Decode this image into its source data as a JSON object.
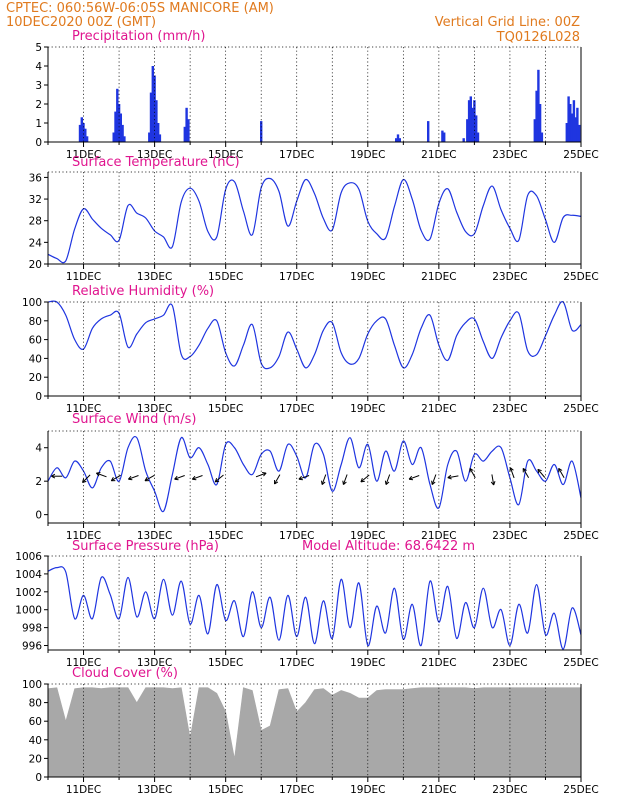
{
  "header": {
    "left_line1": "CPTEC:   060:56W-06:05S   MANICORE (AM)",
    "left_line2": "10DEC2020 00Z (GMT)",
    "right_line1": "Vertical Grid Line: 00Z",
    "right_line2": "TQ0126L028"
  },
  "colors": {
    "header": "#e07a1e",
    "title": "#e0158f",
    "series": "#1f35e0",
    "cloud": "#a8a8a8"
  },
  "x_tick_labels": [
    "11DEC",
    "13DEC",
    "15DEC",
    "17DEC",
    "19DEC",
    "21DEC",
    "23DEC",
    "25DEC"
  ],
  "chart_data": [
    {
      "type": "bar",
      "title": "Precipitation (mm/h)",
      "ylim": [
        0,
        5
      ],
      "yticks": [
        "0",
        "1",
        "2",
        "3",
        "4",
        "5"
      ],
      "x_unit": "days since 10DEC2020 00Z",
      "xlim": [
        0,
        15
      ],
      "grid": true,
      "x": [
        0.9,
        0.95,
        1.0,
        1.05,
        1.1,
        1.85,
        1.9,
        1.95,
        2.0,
        2.05,
        2.1,
        2.15,
        2.85,
        2.9,
        2.95,
        3.0,
        3.05,
        3.1,
        3.15,
        3.85,
        3.9,
        3.95,
        6.0,
        9.8,
        9.85,
        9.9,
        10.7,
        11.1,
        11.15,
        11.7,
        11.8,
        11.85,
        11.9,
        11.95,
        12.0,
        12.05,
        12.1,
        13.7,
        13.75,
        13.8,
        13.85,
        13.9,
        14.6,
        14.65,
        14.7,
        14.75,
        14.8,
        14.85,
        14.9,
        14.95
      ],
      "values": [
        0.9,
        1.3,
        1.0,
        0.7,
        0.3,
        0.5,
        1.6,
        2.8,
        2.0,
        1.5,
        0.9,
        0.3,
        0.5,
        2.6,
        4.0,
        3.5,
        2.2,
        1.0,
        0.4,
        0.8,
        1.8,
        1.2,
        1.1,
        0.2,
        0.4,
        0.2,
        1.1,
        0.6,
        0.5,
        0.2,
        1.2,
        2.2,
        2.4,
        1.8,
        2.2,
        1.4,
        0.5,
        1.2,
        2.7,
        3.8,
        2.0,
        0.5,
        1.0,
        2.4,
        2.0,
        1.5,
        2.2,
        1.3,
        1.8,
        0.9
      ]
    },
    {
      "type": "line",
      "title": "Surface Temperature (nC)",
      "ylim": [
        20,
        37
      ],
      "yticks": [
        "20",
        "24",
        "28",
        "32",
        "36"
      ],
      "x_unit": "days since 10DEC2020 00Z",
      "xlim": [
        0,
        15
      ],
      "grid": true,
      "x": [
        0,
        0.25,
        0.5,
        0.75,
        1.0,
        1.25,
        1.5,
        1.75,
        2.0,
        2.25,
        2.5,
        2.75,
        3.0,
        3.25,
        3.5,
        3.75,
        4.0,
        4.25,
        4.5,
        4.75,
        5.0,
        5.25,
        5.5,
        5.75,
        6.0,
        6.25,
        6.5,
        6.75,
        7.0,
        7.25,
        7.5,
        7.75,
        8.0,
        8.25,
        8.5,
        8.75,
        9.0,
        9.25,
        9.5,
        9.75,
        10.0,
        10.25,
        10.5,
        10.75,
        11.0,
        11.25,
        11.5,
        11.75,
        12.0,
        12.25,
        12.5,
        12.75,
        13.0,
        13.25,
        13.5,
        13.75,
        14.0,
        14.25,
        14.5,
        14.75,
        15.0
      ],
      "series": [
        {
          "values": [
            21.8,
            21.0,
            20.6,
            26.5,
            30.2,
            28.3,
            26.6,
            25.4,
            24.4,
            30.8,
            29.4,
            28.5,
            26.1,
            25.0,
            23.2,
            31.5,
            34.0,
            31.6,
            26.0,
            25.0,
            33.8,
            35.2,
            29.8,
            25.4,
            34.1,
            35.8,
            33.4,
            27.0,
            31.6,
            35.6,
            33.0,
            28.4,
            26.3,
            33.2,
            35.0,
            33.8,
            27.9,
            25.6,
            24.8,
            30.6,
            35.6,
            32.0,
            26.2,
            24.6,
            31.2,
            33.9,
            29.6,
            26.0,
            25.6,
            30.8,
            34.4,
            30.0,
            26.6,
            24.4,
            32.7,
            32.6,
            28.2,
            24.0,
            28.6,
            29.0,
            28.8
          ]
        }
      ]
    },
    {
      "type": "line",
      "title": "Relative Humidity (%)",
      "ylim": [
        0,
        100
      ],
      "yticks": [
        "0",
        "20",
        "40",
        "60",
        "80",
        "100"
      ],
      "x_unit": "days since 10DEC2020 00Z",
      "xlim": [
        0,
        15
      ],
      "grid": true,
      "x": [
        0,
        0.25,
        0.5,
        0.75,
        1.0,
        1.25,
        1.5,
        1.75,
        2.0,
        2.25,
        2.5,
        2.75,
        3.0,
        3.25,
        3.5,
        3.75,
        4.0,
        4.25,
        4.5,
        4.75,
        5.0,
        5.25,
        5.5,
        5.75,
        6.0,
        6.25,
        6.5,
        6.75,
        7.0,
        7.25,
        7.5,
        7.75,
        8.0,
        8.25,
        8.5,
        8.75,
        9.0,
        9.25,
        9.5,
        9.75,
        10.0,
        10.25,
        10.5,
        10.75,
        11.0,
        11.25,
        11.5,
        11.75,
        12.0,
        12.25,
        12.5,
        12.75,
        13.0,
        13.25,
        13.5,
        13.75,
        14.0,
        14.25,
        14.5,
        14.75,
        15.0
      ],
      "series": [
        {
          "values": [
            100,
            100,
            86,
            60,
            50,
            72,
            82,
            86,
            88,
            52,
            66,
            78,
            82,
            86,
            96,
            44,
            42,
            54,
            72,
            80,
            46,
            32,
            54,
            76,
            35,
            30,
            42,
            68,
            50,
            30,
            44,
            70,
            78,
            46,
            34,
            40,
            66,
            80,
            82,
            54,
            30,
            44,
            72,
            86,
            54,
            38,
            64,
            78,
            82,
            58,
            40,
            62,
            80,
            88,
            48,
            44,
            64,
            86,
            100,
            70,
            76
          ]
        }
      ]
    },
    {
      "type": "line",
      "title": "Surface Wind (m/s)",
      "ylim": [
        -0.5,
        5
      ],
      "yticks": [
        "0",
        "2",
        "4"
      ],
      "x_unit": "days since 10DEC2020 00Z",
      "xlim": [
        0,
        15
      ],
      "grid": true,
      "x": [
        0,
        0.25,
        0.5,
        0.75,
        1.0,
        1.25,
        1.5,
        1.75,
        2.0,
        2.25,
        2.5,
        2.75,
        3.0,
        3.25,
        3.5,
        3.75,
        4.0,
        4.25,
        4.5,
        4.75,
        5.0,
        5.25,
        5.5,
        5.75,
        6.0,
        6.25,
        6.5,
        6.75,
        7.0,
        7.25,
        7.5,
        7.75,
        8.0,
        8.25,
        8.5,
        8.75,
        9.0,
        9.25,
        9.5,
        9.75,
        10.0,
        10.25,
        10.5,
        10.75,
        11.0,
        11.25,
        11.5,
        11.75,
        12.0,
        12.25,
        12.5,
        12.75,
        13.0,
        13.25,
        13.5,
        13.75,
        14.0,
        14.25,
        14.5,
        14.75,
        15.0
      ],
      "series": [
        {
          "values": [
            2.0,
            2.8,
            2.2,
            3.2,
            2.6,
            1.6,
            2.8,
            3.2,
            2.0,
            4.0,
            4.6,
            2.6,
            1.4,
            0.2,
            2.4,
            4.6,
            3.4,
            4.0,
            3.0,
            1.8,
            4.2,
            4.0,
            3.0,
            2.4,
            3.6,
            3.8,
            2.6,
            4.2,
            3.5,
            2.2,
            4.2,
            3.6,
            1.4,
            3.0,
            4.6,
            2.8,
            4.2,
            2.0,
            3.8,
            2.6,
            4.4,
            3.0,
            4.0,
            1.8,
            0.4,
            3.0,
            3.8,
            2.0,
            3.6,
            3.2,
            3.8,
            4.0,
            2.2,
            0.6,
            3.2,
            2.6,
            2.0,
            3.0,
            1.8,
            3.2,
            1.0
          ]
        }
      ],
      "arrows": {
        "x": [
          0.35,
          1.15,
          1.6,
          2.0,
          2.5,
          2.95,
          3.8,
          4.3,
          4.9,
          5.9,
          6.5,
          7.3,
          7.8,
          8.4,
          9.0,
          9.6,
          10.4,
          10.9,
          11.5,
          12.0,
          12.5,
          13.1,
          13.5,
          13.95,
          14.5
        ],
        "dir_deg": [
          180,
          225,
          160,
          210,
          200,
          210,
          200,
          200,
          220,
          20,
          240,
          200,
          250,
          250,
          220,
          250,
          200,
          250,
          190,
          120,
          280,
          110,
          120,
          130,
          120
        ]
      }
    },
    {
      "type": "line",
      "title": "Surface Pressure (hPa)",
      "annotation": "Model Altitude: 68.6422 m",
      "ylim": [
        995.5,
        1006
      ],
      "yticks": [
        "996",
        "998",
        "1000",
        "1002",
        "1004",
        "1006"
      ],
      "x_unit": "days since 10DEC2020 00Z",
      "xlim": [
        0,
        15
      ],
      "grid": true,
      "x": [
        0,
        0.25,
        0.5,
        0.75,
        1.0,
        1.25,
        1.5,
        1.75,
        2.0,
        2.25,
        2.5,
        2.75,
        3.0,
        3.25,
        3.5,
        3.75,
        4.0,
        4.25,
        4.5,
        4.75,
        5.0,
        5.25,
        5.5,
        5.75,
        6.0,
        6.25,
        6.5,
        6.75,
        7.0,
        7.25,
        7.5,
        7.75,
        8.0,
        8.25,
        8.5,
        8.75,
        9.0,
        9.25,
        9.5,
        9.75,
        10.0,
        10.25,
        10.5,
        10.75,
        11.0,
        11.25,
        11.5,
        11.75,
        12.0,
        12.25,
        12.5,
        12.75,
        13.0,
        13.25,
        13.5,
        13.75,
        14.0,
        14.25,
        14.5,
        14.75,
        15.0
      ],
      "series": [
        {
          "values": [
            1004.3,
            1004.7,
            1004.2,
            999.0,
            1001.6,
            999.0,
            1003.6,
            1001.7,
            999.0,
            1003.6,
            999.2,
            1002.0,
            999.0,
            1003.4,
            999.4,
            1003.2,
            998.4,
            1001.6,
            997.3,
            1002.8,
            998.8,
            1001.0,
            997.0,
            1002.0,
            998.0,
            1001.4,
            996.6,
            1001.6,
            997.0,
            1001.4,
            996.2,
            1001.0,
            996.8,
            1003.4,
            998.0,
            1003.0,
            996.0,
            1000.4,
            997.4,
            1002.4,
            996.7,
            1000.6,
            996.0,
            1003.2,
            998.6,
            1002.6,
            996.8,
            1000.8,
            998.0,
            1002.4,
            998.0,
            1000.0,
            996.0,
            1000.6,
            997.4,
            1002.8,
            997.2,
            999.6,
            995.6,
            1000.2,
            997.2
          ]
        }
      ]
    },
    {
      "type": "area",
      "title": "Cloud Cover (%)",
      "ylim": [
        0,
        100
      ],
      "yticks": [
        "0",
        "20",
        "40",
        "60",
        "80",
        "100"
      ],
      "x_unit": "days since 10DEC2020 00Z",
      "xlim": [
        0,
        15
      ],
      "grid": true,
      "x": [
        0,
        0.25,
        0.5,
        0.75,
        1.0,
        1.25,
        1.5,
        1.75,
        2.0,
        2.25,
        2.5,
        2.75,
        3.0,
        3.25,
        3.5,
        3.75,
        4.0,
        4.25,
        4.5,
        4.75,
        5.0,
        5.25,
        5.5,
        5.75,
        6.0,
        6.25,
        6.5,
        6.75,
        7.0,
        7.25,
        7.5,
        7.75,
        8.0,
        8.25,
        8.5,
        8.75,
        9.0,
        9.25,
        9.5,
        9.75,
        10.0,
        10.25,
        10.5,
        10.75,
        11.0,
        11.25,
        11.5,
        11.75,
        12.0,
        12.25,
        12.5,
        12.75,
        13.0,
        13.25,
        13.5,
        13.75,
        14.0,
        14.25,
        14.5,
        14.75,
        15.0
      ],
      "series": [
        {
          "values": [
            95,
            96,
            60,
            95,
            96,
            96,
            95,
            96,
            96,
            96,
            80,
            96,
            96,
            96,
            95,
            96,
            42,
            96,
            96,
            90,
            70,
            20,
            96,
            93,
            50,
            55,
            94,
            95,
            70,
            80,
            94,
            95,
            88,
            93,
            90,
            85,
            85,
            93,
            94,
            94,
            94,
            95,
            96,
            96,
            96,
            96,
            96,
            96,
            95,
            96,
            96,
            96,
            96,
            96,
            96,
            96,
            96,
            96,
            96,
            96,
            96
          ]
        }
      ]
    }
  ]
}
